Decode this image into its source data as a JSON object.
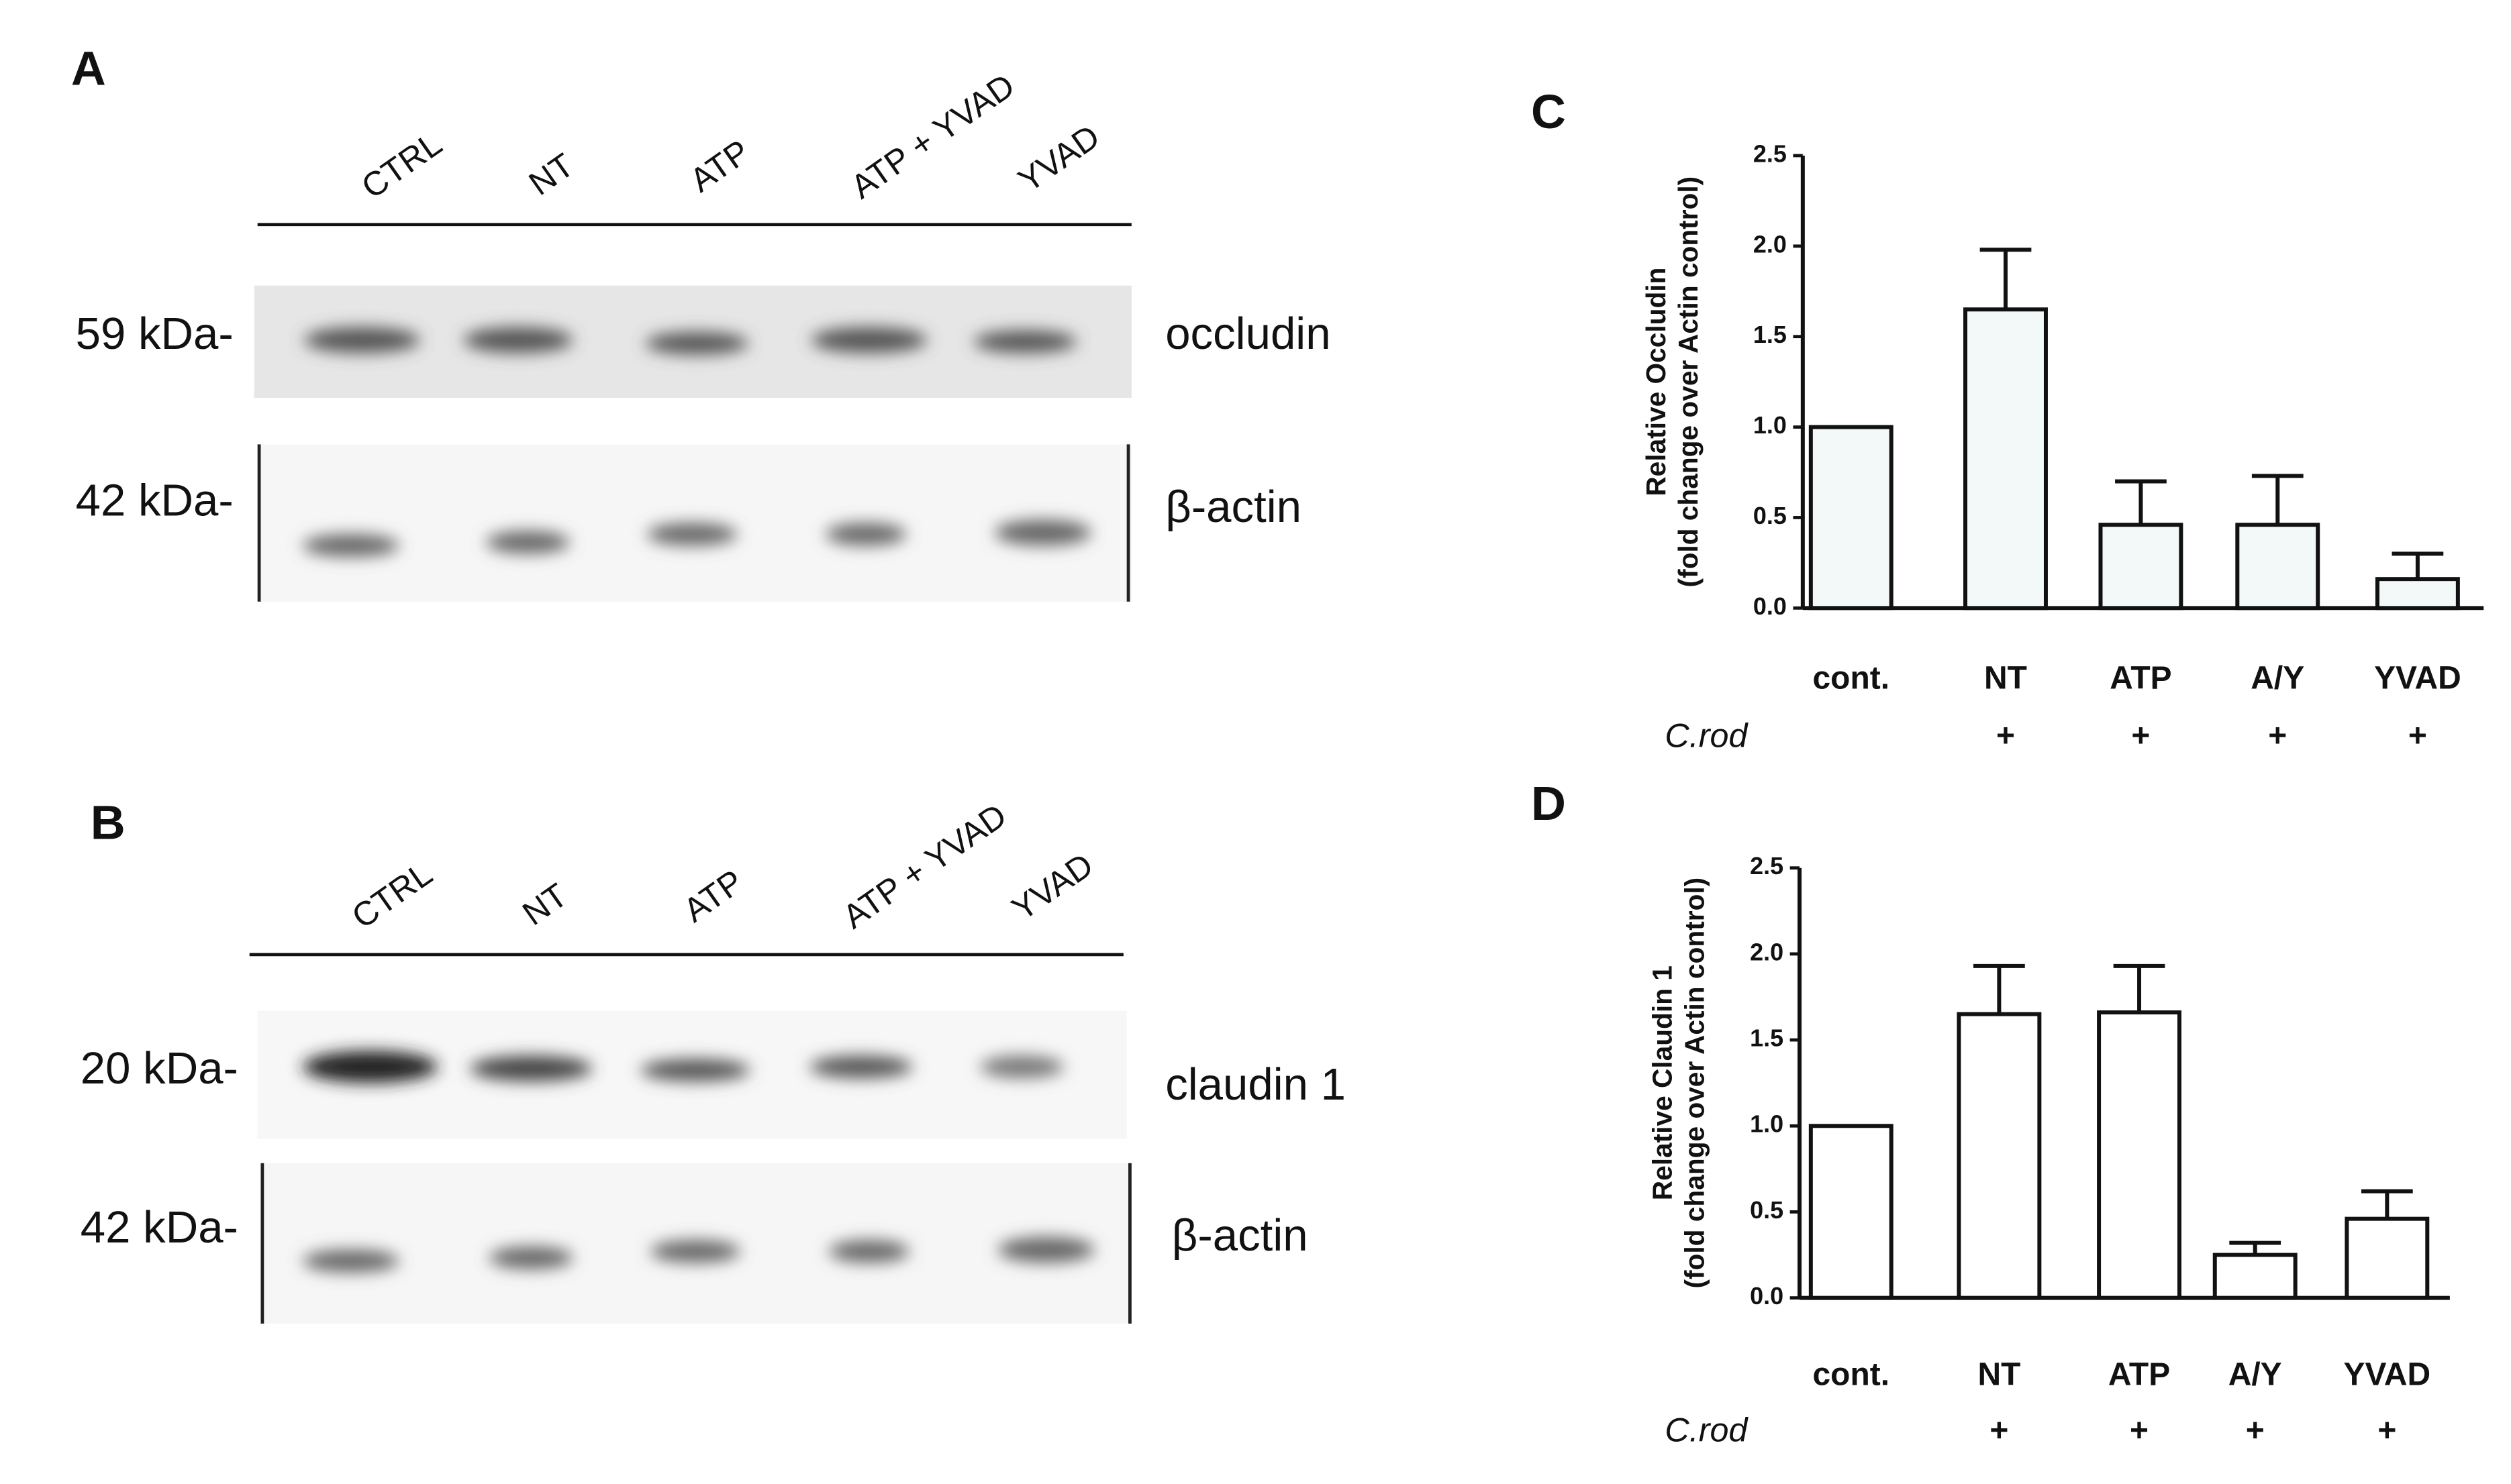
{
  "panels": {
    "a": "A",
    "b": "B",
    "c": "C",
    "d": "D"
  },
  "blot_a": {
    "lanes": [
      "CTRL",
      "NT",
      "ATP",
      "ATP + YVAD",
      "YVAD"
    ],
    "rows": [
      {
        "marker": "59 kDa-",
        "protein": "occludin"
      },
      {
        "marker": "42 kDa-",
        "protein": "β-actin"
      }
    ]
  },
  "blot_b": {
    "lanes": [
      "CTRL",
      "NT",
      "ATP",
      "ATP + YVAD",
      "YVAD"
    ],
    "rows": [
      {
        "marker": "20 kDa-",
        "protein": "claudin 1"
      },
      {
        "marker": "42 kDa-",
        "protein": "β-actin"
      }
    ]
  },
  "chart_data": [
    {
      "type": "bar",
      "y_label": [
        "Relative Occludin",
        "(fold change over Actin control)"
      ],
      "categories": [
        "cont.",
        "NT",
        "ATP",
        "A/Y",
        "YVAD"
      ],
      "treatment_label": "C.rod",
      "treatment": [
        null,
        "+",
        "+",
        "+",
        "+"
      ],
      "values": [
        1.0,
        1.65,
        0.46,
        0.46,
        0.16
      ],
      "errors": [
        0,
        0.33,
        0.24,
        0.27,
        0.14
      ],
      "color": "#f3f8f8",
      "ylim": [
        0,
        2.5
      ],
      "yticks": [
        {
          "value": 0,
          "label": "0.0"
        },
        0.5,
        {
          "value": 1,
          "label": "1.0"
        },
        1.5,
        {
          "value": 2,
          "label": "2.0"
        },
        2.5
      ]
    },
    {
      "type": "bar",
      "y_label": [
        "Relative Claudin 1",
        "(fold change over Actin control)"
      ],
      "categories": [
        "cont.",
        "NT",
        "ATP",
        "A/Y",
        "YVAD"
      ],
      "treatment_label": "C.rod",
      "treatment": [
        null,
        "+",
        "+",
        "+",
        "+"
      ],
      "values": [
        1.0,
        1.65,
        1.66,
        0.25,
        0.46
      ],
      "errors": [
        0,
        0.28,
        0.27,
        0.07,
        0.16
      ],
      "color": "#ffffff",
      "ylim": [
        0,
        2.5
      ],
      "yticks": [
        {
          "value": 0,
          "label": "0.0"
        },
        0.5,
        {
          "value": 1,
          "label": "1.0"
        },
        1.5,
        {
          "value": 2,
          "label": "2.0"
        },
        2.5
      ]
    }
  ]
}
